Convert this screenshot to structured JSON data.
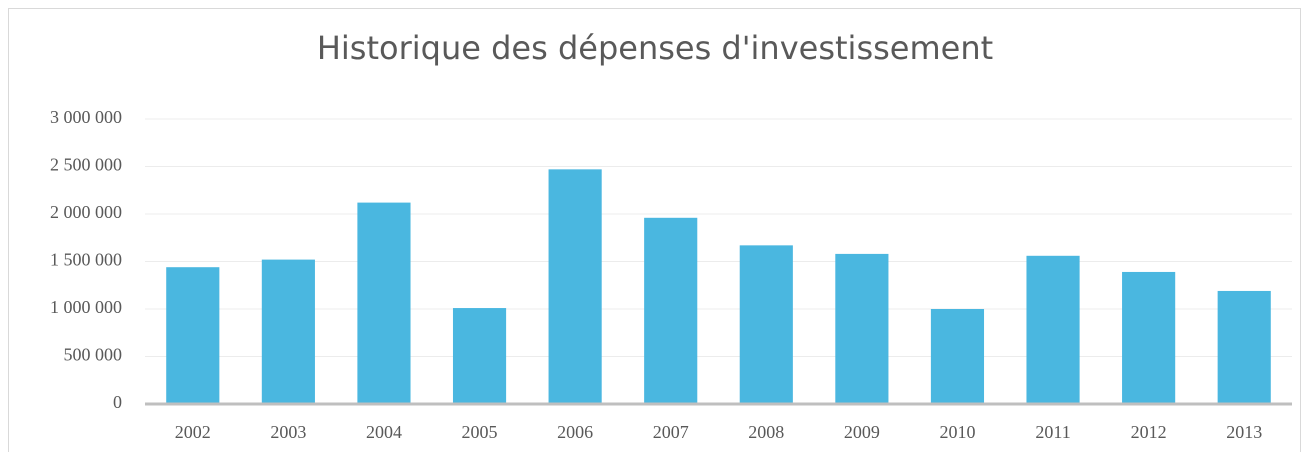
{
  "chart_data": {
    "type": "bar",
    "title": "Historique des dépenses d'investissement",
    "categories": [
      "2002",
      "2003",
      "2004",
      "2005",
      "2006",
      "2007",
      "2008",
      "2009",
      "2010",
      "2011",
      "2012",
      "2013"
    ],
    "values": [
      1440000,
      1520000,
      2120000,
      1010000,
      2470000,
      1960000,
      1670000,
      1580000,
      1000000,
      1560000,
      1390000,
      1190000
    ],
    "color": "#4ab7e0",
    "ylim": [
      0,
      3000000
    ],
    "yticks": [
      0,
      {
        "value": 500000,
        "label": "500 000"
      },
      {
        "value": 1000000,
        "label": "1 000 000"
      },
      {
        "value": 1500000,
        "label": "1 500 000"
      },
      {
        "value": 2000000,
        "label": "2 000 000"
      },
      {
        "value": 2500000,
        "label": "2 500 000"
      },
      {
        "value": 3000000,
        "label": "3 000 000"
      }
    ],
    "grid": true
  }
}
